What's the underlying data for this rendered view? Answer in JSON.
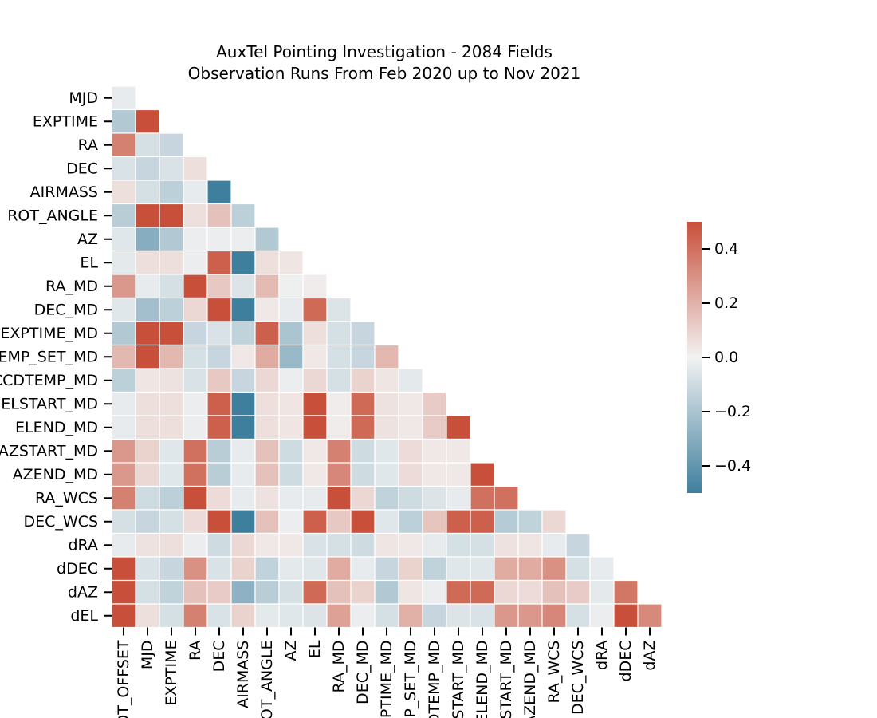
{
  "chart_data": {
    "type": "heatmap",
    "title": "AuxTel Pointing Investigation - 2084 Fields",
    "subtitle": "Observation Runs From Feb 2020 up to Nov 2021",
    "row_labels": [
      "MJD",
      "EXPTIME",
      "RA",
      "DEC",
      "AIRMASS",
      "ROT_ANGLE",
      "AZ",
      "EL",
      "RA_MD",
      "DEC_MD",
      "EXPTIME_MD",
      "TEMP_SET_MD",
      "CCDTEMP_MD",
      "ELSTART_MD",
      "ELEND_MD",
      "AZSTART_MD",
      "AZEND_MD",
      "RA_WCS",
      "DEC_WCS",
      "dRA",
      "dDEC",
      "dAZ",
      "dEL"
    ],
    "col_labels": [
      "ROT_OFFSET",
      "MJD",
      "EXPTIME",
      "RA",
      "DEC",
      "AIRMASS",
      "ROT_ANGLE",
      "AZ",
      "EL",
      "RA_MD",
      "DEC_MD",
      "EXPTIME_MD",
      "TEMP_SET_MD",
      "CCDTEMP_MD",
      "ELSTART_MD",
      "ELEND_MD",
      "AZSTART_MD",
      "AZEND_MD",
      "RA_WCS",
      "DEC_WCS",
      "dRA",
      "dDEC",
      "dAZ"
    ],
    "mask": "lower-triangle (diagonal hidden)",
    "values": [
      [
        -0.03
      ],
      [
        -0.18,
        0.5
      ],
      [
        0.35,
        -0.08,
        -0.12
      ],
      [
        -0.07,
        -0.12,
        -0.07,
        0.06
      ],
      [
        0.06,
        -0.08,
        -0.15,
        -0.03,
        -0.5
      ],
      [
        -0.16,
        0.5,
        0.5,
        0.06,
        0.15,
        -0.15
      ],
      [
        -0.05,
        -0.3,
        -0.18,
        -0.02,
        -0.02,
        -0.02,
        -0.18
      ],
      [
        -0.04,
        0.06,
        0.06,
        -0.02,
        0.45,
        -0.5,
        0.06,
        0.04
      ],
      [
        0.28,
        -0.03,
        -0.08,
        0.5,
        0.13,
        -0.06,
        0.17,
        -0.01,
        0.02
      ],
      [
        -0.05,
        -0.22,
        -0.15,
        0.08,
        0.5,
        -0.5,
        0.03,
        -0.03,
        0.42,
        -0.06
      ],
      [
        -0.18,
        0.5,
        0.5,
        -0.12,
        -0.07,
        -0.14,
        0.45,
        -0.2,
        0.06,
        -0.08,
        -0.12
      ],
      [
        0.18,
        0.5,
        0.18,
        -0.08,
        -0.12,
        0.03,
        0.22,
        -0.25,
        0.03,
        -0.08,
        -0.12,
        0.18
      ],
      [
        -0.15,
        0.04,
        0.05,
        -0.07,
        0.13,
        -0.12,
        0.08,
        -0.02,
        0.08,
        -0.08,
        0.1,
        0.04,
        -0.04
      ],
      [
        -0.03,
        0.06,
        0.06,
        -0.02,
        0.45,
        -0.5,
        0.06,
        0.04,
        0.5,
        0.02,
        0.42,
        0.05,
        0.03,
        0.12
      ],
      [
        -0.03,
        0.06,
        0.06,
        -0.02,
        0.45,
        -0.5,
        0.06,
        0.04,
        0.5,
        0.02,
        0.42,
        0.05,
        0.03,
        0.12,
        0.5
      ],
      [
        0.28,
        0.1,
        -0.05,
        0.4,
        -0.16,
        -0.03,
        0.15,
        -0.1,
        0.03,
        0.35,
        -0.1,
        -0.05,
        0.07,
        0.03,
        0.03
      ],
      [
        0.28,
        0.08,
        -0.05,
        0.4,
        -0.16,
        -0.03,
        0.15,
        -0.1,
        0.03,
        0.33,
        -0.1,
        -0.05,
        0.07,
        0.03,
        0.03,
        0.5
      ],
      [
        0.35,
        -0.1,
        -0.15,
        0.5,
        0.07,
        -0.03,
        0.05,
        -0.03,
        -0.03,
        0.5,
        0.08,
        -0.14,
        -0.1,
        -0.06,
        -0.03,
        0.4,
        0.4
      ],
      [
        -0.08,
        -0.12,
        -0.08,
        0.07,
        0.5,
        -0.5,
        0.15,
        -0.02,
        0.45,
        0.13,
        0.5,
        -0.05,
        -0.15,
        0.14,
        0.45,
        0.45,
        -0.17,
        -0.14,
        0.08
      ],
      [
        -0.03,
        0.05,
        0.06,
        -0.02,
        -0.1,
        0.08,
        0.03,
        0.03,
        -0.07,
        -0.08,
        -0.1,
        0.04,
        0.03,
        -0.03,
        -0.08,
        -0.08,
        0.05,
        0.04,
        -0.03,
        -0.12
      ],
      [
        0.5,
        -0.07,
        -0.12,
        0.3,
        -0.07,
        0.1,
        -0.14,
        -0.04,
        -0.05,
        0.22,
        -0.03,
        -0.12,
        0.1,
        -0.14,
        -0.05,
        -0.05,
        0.22,
        0.22,
        0.3,
        -0.08,
        -0.03
      ],
      [
        0.5,
        -0.08,
        -0.14,
        0.15,
        0.12,
        -0.28,
        -0.16,
        -0.08,
        0.42,
        0.15,
        0.1,
        -0.18,
        0.04,
        -0.02,
        0.42,
        0.42,
        0.08,
        0.07,
        0.15,
        0.12,
        -0.04,
        0.38
      ],
      [
        0.5,
        0.06,
        -0.08,
        0.35,
        -0.07,
        0.1,
        -0.04,
        -0.05,
        -0.06,
        0.25,
        -0.02,
        -0.08,
        0.2,
        -0.12,
        -0.06,
        -0.07,
        0.28,
        0.28,
        0.33,
        -0.08,
        -0.02,
        0.5,
        0.32
      ]
    ],
    "colormap": {
      "negative": "#3f7f9e",
      "center": "#f2f2f2",
      "positive": "#c8503a"
    },
    "vmin": -0.5,
    "vmax": 0.5,
    "colorbar_ticks": [
      0.4,
      0.2,
      0.0,
      -0.2,
      -0.4
    ],
    "colorbar_tick_labels": [
      "0.4",
      "0.2",
      "0.0",
      "−0.2",
      "−0.4"
    ],
    "grid": "white cell borders",
    "legend": "colorbar right"
  }
}
